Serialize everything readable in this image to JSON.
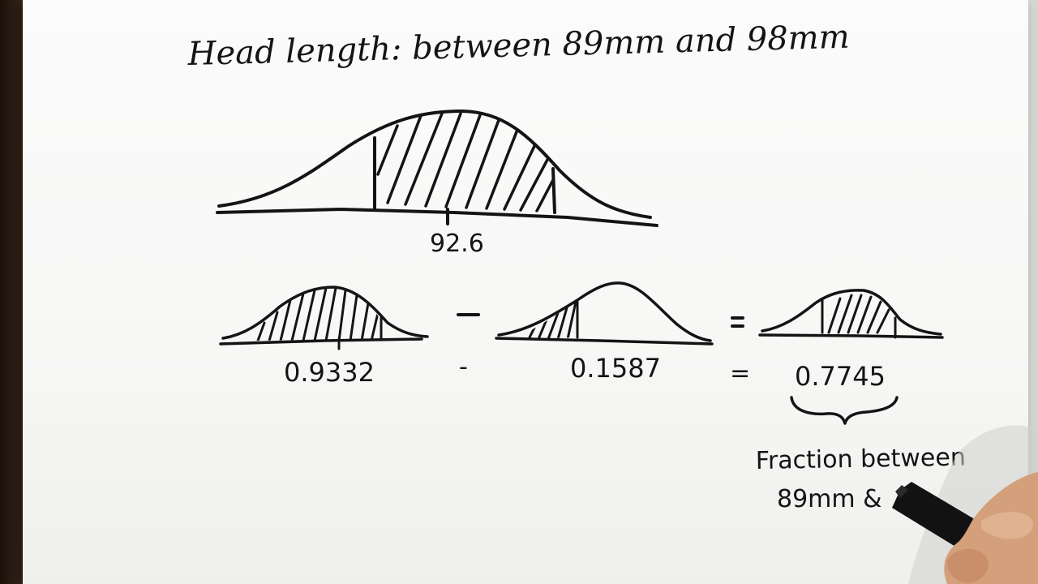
{
  "title": "Head length: between 89mm and 98mm",
  "main_curve": {
    "center_label": "92.6"
  },
  "equation": {
    "left_value": "0.9332",
    "minus": "-",
    "middle_value": "0.1587",
    "equals": "=",
    "result_value": "0.7745"
  },
  "annotation": {
    "line1": "Fraction between",
    "line2": "89mm &"
  },
  "colors": {
    "ink": "#141414",
    "paper": "#f8f8f7",
    "background": "#2b1c13"
  }
}
